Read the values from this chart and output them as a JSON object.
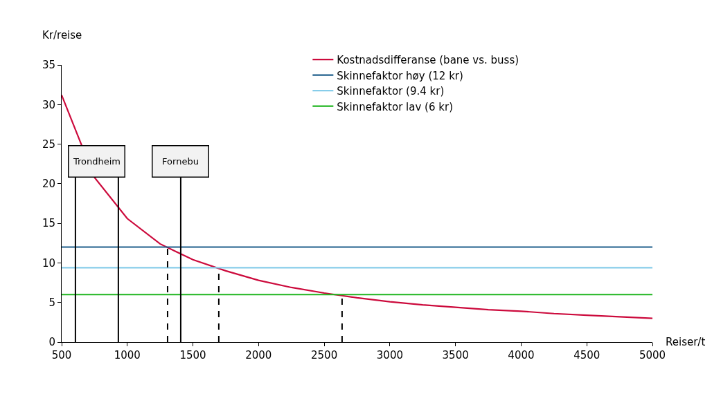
{
  "chart_data": {
    "type": "line",
    "xlabel": "Reiser/t",
    "ylabel": "Kr/reise",
    "x": [
      500,
      750,
      1000,
      1250,
      1500,
      1750,
      2000,
      2250,
      2500,
      2750,
      3000,
      3250,
      3500,
      3750,
      4000,
      4250,
      4500,
      4750,
      5000
    ],
    "series": [
      {
        "name": "Kostnadsdifferanse (bane vs. buss)",
        "color": "#cc0a3c",
        "values": [
          31.2,
          20.8,
          15.6,
          12.4,
          10.4,
          9.0,
          7.8,
          6.9,
          6.2,
          5.6,
          5.1,
          4.7,
          4.4,
          4.1,
          3.9,
          3.6,
          3.4,
          3.2,
          3.0
        ]
      },
      {
        "name": "Skinnefaktor høy (12 kr)",
        "color": "#1f5f8b",
        "values": [
          12,
          12,
          12,
          12,
          12,
          12,
          12,
          12,
          12,
          12,
          12,
          12,
          12,
          12,
          12,
          12,
          12,
          12,
          12
        ]
      },
      {
        "name": "Skinnefaktor (9.4 kr)",
        "color": "#87cdea",
        "values": [
          9.4,
          9.4,
          9.4,
          9.4,
          9.4,
          9.4,
          9.4,
          9.4,
          9.4,
          9.4,
          9.4,
          9.4,
          9.4,
          9.4,
          9.4,
          9.4,
          9.4,
          9.4,
          9.4
        ]
      },
      {
        "name": "Skinnefaktor lav (6 kr)",
        "color": "#1fb51f",
        "values": [
          6,
          6,
          6,
          6,
          6,
          6,
          6,
          6,
          6,
          6,
          6,
          6,
          6,
          6,
          6,
          6,
          6,
          6,
          6
        ]
      }
    ],
    "ref_lines": [
      {
        "axis": "x",
        "value": 605,
        "label": "Trondheim"
      },
      {
        "axis": "x",
        "value": 932
      },
      {
        "axis": "x",
        "value": 1407,
        "label": "Fornebu"
      },
      {
        "axis": "x",
        "value": 1307,
        "line_style": "dashed"
      },
      {
        "axis": "x",
        "value": 1697,
        "line_style": "dashed"
      },
      {
        "axis": "x",
        "value": 2636,
        "line_style": "dashed"
      }
    ],
    "xlim": [
      500,
      5000
    ],
    "xticks": [
      500,
      1000,
      1500,
      2000,
      2500,
      3000,
      3500,
      4000,
      4500,
      5000
    ],
    "ylim": [
      0,
      35
    ],
    "yticks": [
      0,
      5,
      10,
      15,
      20,
      25,
      30,
      35
    ],
    "grid": false,
    "legend": "top right",
    "marker": "none",
    "line_style": "solid"
  }
}
